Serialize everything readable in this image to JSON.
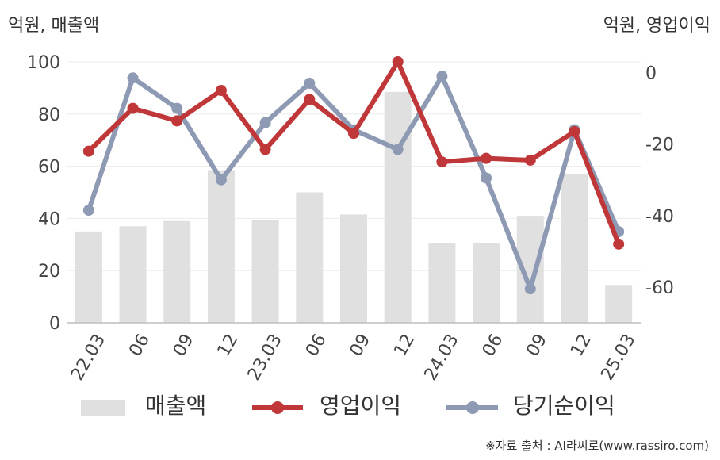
{
  "chart_data": {
    "type": "bar+line",
    "left_axis_unit": "억원, 매출액",
    "right_axis_unit": "억원, 영업이익",
    "categories": [
      "22.03",
      "06",
      "09",
      "12",
      "23.03",
      "06",
      "09",
      "12",
      "24.03",
      "06",
      "09",
      "12",
      "25.03"
    ],
    "left_ylim": [
      0,
      100
    ],
    "left_ticks": [
      "0",
      "20",
      "40",
      "60",
      "80",
      "100"
    ],
    "right_ylim": [
      -70,
      3
    ],
    "right_ticks": [
      "0",
      "-20",
      "-40",
      "-60"
    ],
    "series": [
      {
        "name": "매출액",
        "type": "bar",
        "axis": "left",
        "color": "#e0e0e0",
        "values": [
          35,
          37,
          39,
          58.5,
          39.5,
          50,
          41.5,
          88.5,
          30.5,
          30.5,
          41,
          57,
          14.5
        ]
      },
      {
        "name": "영업이익",
        "type": "line",
        "axis": "right",
        "color": "#c0373a",
        "values": [
          -22,
          -10,
          -13.5,
          -5,
          -21.5,
          -7.5,
          -17,
          3,
          -25,
          -24,
          -24.5,
          -16.5,
          -48
        ]
      },
      {
        "name": "당기순이익",
        "type": "line",
        "axis": "right",
        "color": "#8e9ab4",
        "values": [
          -38.5,
          -1.5,
          -10,
          -30,
          -14,
          -3,
          -16,
          -21.5,
          -1,
          -29.5,
          -60.5,
          -16,
          -44.5
        ]
      }
    ],
    "grid": true,
    "legend_position": "bottom"
  },
  "legend": {
    "bar_label": "매출액",
    "line1_label": "영업이익",
    "line2_label": "당기순이익"
  },
  "source_text": "※자료 출처 : AI라씨로(www.rassiro.com)"
}
